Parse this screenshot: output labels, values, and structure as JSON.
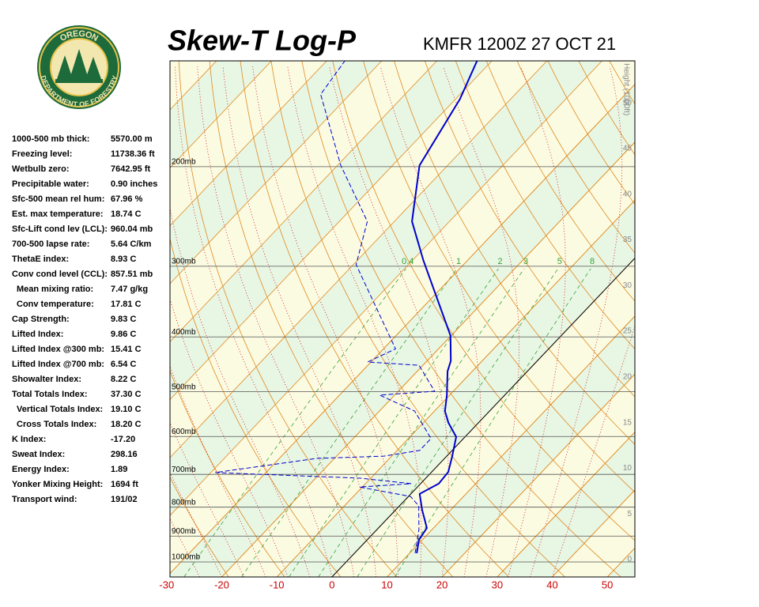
{
  "chart_data": {
    "type": "skew-t",
    "title": "Skew-T Log-P",
    "subtitle": "KMFR 1200Z 27 OCT 21",
    "log_y": true,
    "xlim": [
      -29.4,
      55
    ],
    "xticks": [
      -30,
      -20,
      -10,
      0,
      10,
      20,
      30,
      40,
      50
    ],
    "ylim": [
      1063,
      130
    ],
    "yticks": [
      {
        "value": 1000,
        "label": "1000mb"
      },
      {
        "value": 900,
        "label": "900mb"
      },
      {
        "value": 800,
        "label": "800mb"
      },
      {
        "value": 700,
        "label": "700mb"
      },
      {
        "value": 600,
        "label": "600mb"
      },
      {
        "value": 500,
        "label": "500mb"
      },
      {
        "value": 400,
        "label": "400mb"
      },
      {
        "value": 300,
        "label": "300mb"
      },
      {
        "value": 200,
        "label": "200mb"
      }
    ],
    "height_label": "Height (1000ft)",
    "height_lim": [
      -1.9,
      54.6
    ],
    "height_ticks": [
      0,
      5,
      10,
      15,
      20,
      25,
      30,
      35,
      40,
      45,
      50
    ],
    "mixing_ratios": [
      0.4,
      1,
      2,
      3,
      5,
      8
    ],
    "series": [
      {
        "color": "#0000cc",
        "dashed": false,
        "pressure": [
          965,
          914,
          871,
          809,
          758,
          727,
          693,
          650,
          601,
          567,
          541,
          507,
          460,
          441,
          398,
          293,
          250,
          199,
          152,
          130
        ],
        "values": [
          11.3,
          9.4,
          8.8,
          4.8,
          1.6,
          3.3,
          3.0,
          1.0,
          -1.6,
          -5.5,
          -8.1,
          -10.5,
          -14.5,
          -15.7,
          -20.1,
          -38.0,
          -46.8,
          -55.1,
          -59.2,
          -62.7
        ]
      },
      {
        "color": "#0000cc",
        "dashed": true,
        "pressure": [
          965,
          876,
          796,
          766,
          737,
          727,
          711,
          695,
          656,
          650,
          635,
          605,
          541,
          507,
          499,
          449,
          443,
          420,
          298,
          250,
          199,
          149,
          130
        ],
        "values": [
          11.0,
          7.6,
          3.5,
          0.4,
          -10.5,
          -1.7,
          -11.9,
          -39.2,
          -23.2,
          -11.4,
          -5.9,
          -5.9,
          -13.6,
          -22.7,
          -13.4,
          -20.7,
          -30.6,
          -27.8,
          -49.5,
          -54.9,
          -69.4,
          -85.3,
          -86.7
        ]
      }
    ]
  },
  "logo": {
    "top": "OREGON",
    "bottom": "DEPARTMENT OF FORESTRY"
  },
  "indices": [
    [
      "1000-500 mb thick:",
      "5570.00 m"
    ],
    [
      "Freezing level:",
      "11738.36 ft"
    ],
    [
      "Wetbulb zero:",
      "7642.95 ft"
    ],
    [
      "Precipitable water:",
      "0.90 inches"
    ],
    [
      "Sfc-500 mean rel hum:",
      "67.96 %"
    ],
    [
      "Est. max temperature:",
      "18.74 C"
    ],
    [
      "Sfc-Lift cond lev (LCL):",
      "960.04 mb"
    ],
    [
      "700-500 lapse rate:",
      "5.64 C/km"
    ],
    [
      "ThetaE index:",
      "8.93 C"
    ],
    [
      "Conv cond level (CCL):",
      "857.51 mb"
    ],
    [
      "Mean mixing ratio:",
      "7.47 g/kg"
    ],
    [
      "Conv temperature:",
      "17.81 C"
    ],
    [
      "Cap Strength:",
      "9.83 C"
    ],
    [
      "Lifted Index:",
      "9.86 C"
    ],
    [
      "Lifted Index @300 mb:",
      "15.41 C"
    ],
    [
      "Lifted Index @700 mb:",
      "6.54 C"
    ],
    [
      "Showalter Index:",
      "8.22 C"
    ],
    [
      "Total Totals Index:",
      "37.30 C"
    ],
    [
      "Vertical Totals Index:",
      "19.10 C"
    ],
    [
      "Cross Totals Index:",
      "18.20 C"
    ],
    [
      "K Index:",
      "-17.20"
    ],
    [
      "Sweat Index:",
      "298.16"
    ],
    [
      "Energy Index:",
      "1.89"
    ],
    [
      "Yonker Mixing Height:",
      "1694 ft"
    ],
    [
      "Transport wind:",
      "191/02"
    ]
  ]
}
